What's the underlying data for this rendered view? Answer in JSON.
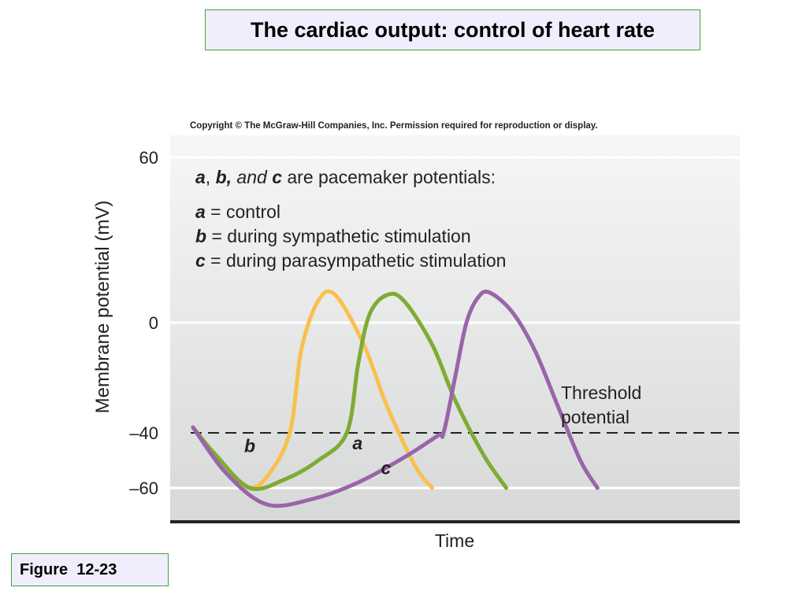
{
  "title": "The cardiac output: control of heart rate",
  "figure_label": "Figure  12-23",
  "copyright": "Copyright © The McGraw-Hill Companies, Inc. Permission required for reproduction or display.",
  "chart_data": {
    "type": "line",
    "ylabel": "Membrane potential (mV)",
    "xlabel": "Time",
    "yticks": [
      {
        "value": 60,
        "label": "60"
      },
      {
        "value": 0,
        "label": "0"
      },
      {
        "value": -40,
        "label": "–40"
      },
      {
        "value": -60,
        "label": "–60"
      }
    ],
    "ylim": [
      -72,
      68
    ],
    "xlim": [
      0,
      100
    ],
    "grid": "horizontal",
    "threshold": {
      "value": -40,
      "label_line1": "Threshold",
      "label_line2": "potential"
    },
    "legend": {
      "heading": {
        "part1": "a",
        "part2": ", ",
        "part3": "b,",
        "part4": " and ",
        "part5": "c",
        "part6": " are pacemaker potentials:"
      },
      "items": [
        {
          "key": "a",
          "text": " = control"
        },
        {
          "key": "b",
          "text": " = during sympathetic stimulation"
        },
        {
          "key": "c",
          "text": " = during parasympathetic stimulation"
        }
      ]
    },
    "series": [
      {
        "name": "b",
        "color": "#f9c04e",
        "label": {
          "text": "b",
          "x": 13,
          "y": -47
        },
        "points": [
          [
            4,
            -38
          ],
          [
            11,
            -57
          ],
          [
            14,
            -60
          ],
          [
            17,
            -56
          ],
          [
            21,
            -40
          ],
          [
            23,
            -10
          ],
          [
            26,
            8
          ],
          [
            29,
            10
          ],
          [
            34,
            -8
          ],
          [
            38,
            -30
          ],
          [
            43,
            -52
          ],
          [
            46,
            -60
          ]
        ]
      },
      {
        "name": "a",
        "color": "#7fab33",
        "label": {
          "text": "a",
          "x": 32,
          "y": -46
        },
        "points": [
          [
            4,
            -38
          ],
          [
            8,
            -48
          ],
          [
            14,
            -60
          ],
          [
            20,
            -57
          ],
          [
            26,
            -50
          ],
          [
            31,
            -40
          ],
          [
            33,
            -15
          ],
          [
            35,
            3
          ],
          [
            38,
            10
          ],
          [
            41,
            8
          ],
          [
            46,
            -8
          ],
          [
            50,
            -28
          ],
          [
            55,
            -48
          ],
          [
            59,
            -60
          ]
        ]
      },
      {
        "name": "c",
        "color": "#9a64aa",
        "label": {
          "text": "c",
          "x": 37,
          "y": -55
        },
        "points": [
          [
            4,
            -38
          ],
          [
            10,
            -55
          ],
          [
            17,
            -66
          ],
          [
            25,
            -64
          ],
          [
            33,
            -58
          ],
          [
            41,
            -49
          ],
          [
            47,
            -41
          ],
          [
            48,
            -40
          ],
          [
            50,
            -20
          ],
          [
            52,
            0
          ],
          [
            54,
            9
          ],
          [
            56,
            11
          ],
          [
            60,
            4
          ],
          [
            64,
            -10
          ],
          [
            68,
            -30
          ],
          [
            72,
            -50
          ],
          [
            75,
            -60
          ]
        ]
      }
    ]
  }
}
